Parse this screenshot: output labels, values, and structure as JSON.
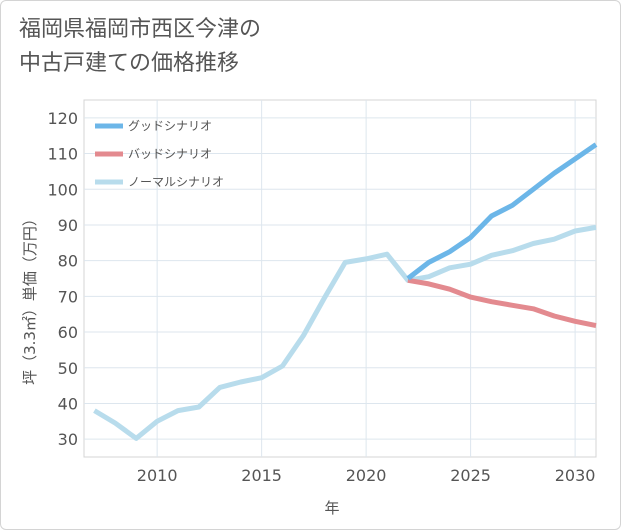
{
  "title": {
    "line1": "福岡県福岡市西区今津の",
    "line2": "中古戸建ての価格推移"
  },
  "chart_data": {
    "type": "line",
    "xlabel": "年",
    "ylabel": "坪（3.3㎡）単価（万円）",
    "xlim": [
      2006.5,
      2031
    ],
    "ylim": [
      25,
      125
    ],
    "xticks": [
      2010,
      2015,
      2020,
      2025,
      2030
    ],
    "yticks": [
      30,
      40,
      50,
      60,
      70,
      80,
      90,
      100,
      110,
      120
    ],
    "grid": true,
    "legend_position": "top-left",
    "series": [
      {
        "name": "グッドシナリオ",
        "color": "#6cb6e8",
        "x": [
          2022,
          2023,
          2024,
          2025,
          2026,
          2027,
          2028,
          2029,
          2030,
          2031
        ],
        "y": [
          75,
          79.5,
          82.5,
          86.5,
          92.5,
          95.5,
          100,
          104.5,
          108.5,
          112.5
        ]
      },
      {
        "name": "バッドシナリオ",
        "color": "#e38a8f",
        "x": [
          2022,
          2023,
          2024,
          2025,
          2026,
          2027,
          2028,
          2029,
          2030,
          2031
        ],
        "y": [
          74.5,
          73.5,
          72,
          69.8,
          68.5,
          67.5,
          66.5,
          64.5,
          63,
          61.8
        ]
      },
      {
        "name": "ノーマルシナリオ",
        "color": "#b8dcec",
        "x": [
          2007,
          2008,
          2009,
          2010,
          2011,
          2012,
          2013,
          2014,
          2015,
          2016,
          2017,
          2018,
          2019,
          2020,
          2021,
          2022,
          2023,
          2024,
          2025,
          2026,
          2027,
          2028,
          2029,
          2030,
          2031
        ],
        "y": [
          38,
          34.5,
          30.2,
          35,
          38,
          39,
          44.5,
          46,
          47.2,
          50.5,
          59,
          69.5,
          79.5,
          80.5,
          81.8,
          74.5,
          75.5,
          78,
          79,
          81.5,
          82.8,
          84.8,
          86,
          88.3,
          89.3
        ]
      }
    ]
  }
}
